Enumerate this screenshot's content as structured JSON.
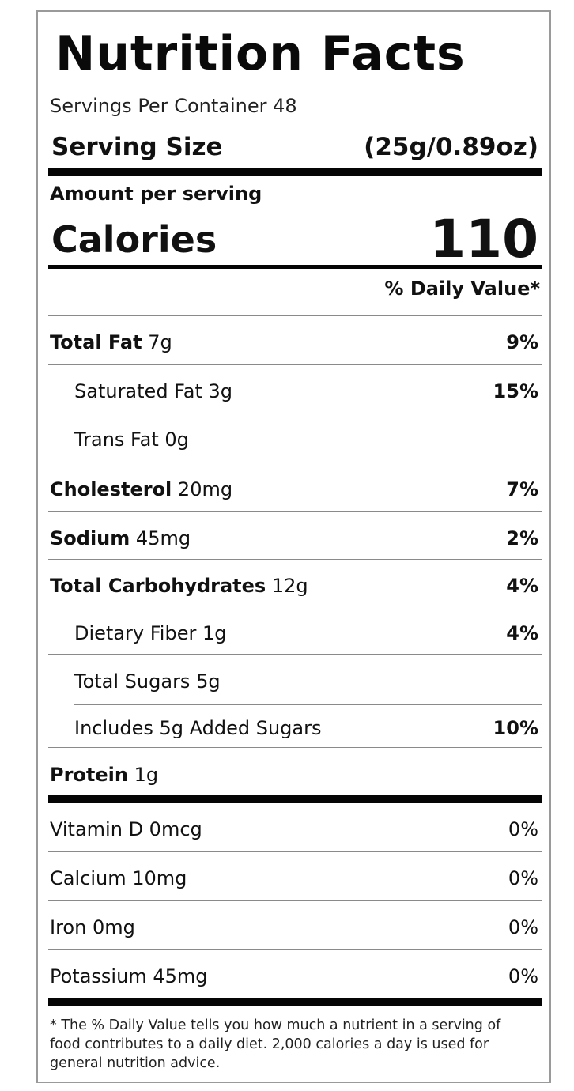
{
  "label": {
    "title": "Nutrition Facts",
    "servings_per_container": "Servings Per Container 48",
    "serving_size_label": "Serving Size",
    "serving_size_value": "(25g/0.89oz)",
    "amount_per_serving": "Amount per serving",
    "calories_label": "Calories",
    "calories_value": "110",
    "daily_value_header": "% Daily Value*",
    "nutrients": [
      {
        "name": "Total Fat",
        "amount": "7g",
        "dv": "9%"
      },
      {
        "name": "Saturated Fat 3g",
        "amount": "",
        "dv": "15%"
      },
      {
        "name": "Trans Fat 0g",
        "amount": "",
        "dv": ""
      },
      {
        "name": "Cholesterol",
        "amount": "20mg",
        "dv": "7%"
      },
      {
        "name": "Sodium",
        "amount": "45mg",
        "dv": "2%"
      },
      {
        "name": "Total Carbohydrates",
        "amount": "12g",
        "dv": "4%"
      },
      {
        "name": "Dietary Fiber 1g",
        "amount": "",
        "dv": "4%"
      },
      {
        "name": "Total Sugars 5g",
        "amount": "",
        "dv": ""
      },
      {
        "name": "Includes 5g Added Sugars",
        "amount": "",
        "dv": "10%"
      },
      {
        "name": "Protein",
        "amount": "1g",
        "dv": ""
      }
    ],
    "vitamins": [
      {
        "name": "Vitamin D 0mcg",
        "dv": "0%"
      },
      {
        "name": "Calcium 10mg",
        "dv": "0%"
      },
      {
        "name": "Iron 0mg",
        "dv": "0%"
      },
      {
        "name": "Potassium 45mg",
        "dv": "0%"
      }
    ],
    "footnote": "* The % Daily Value tells you how much a nutrient in a serving of food contributes to a daily diet. 2,000 calories a day is used for general nutrition advice."
  }
}
